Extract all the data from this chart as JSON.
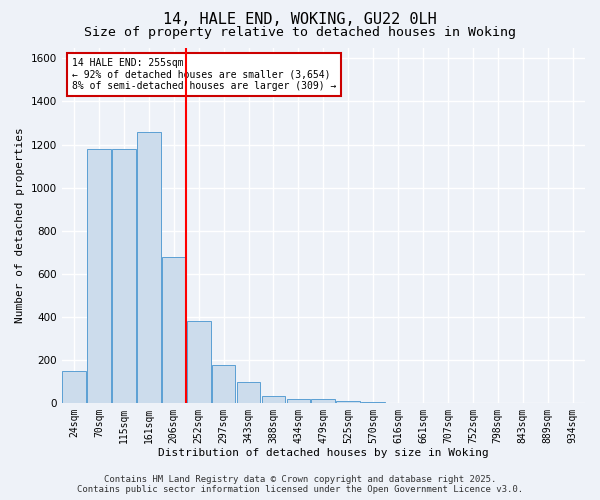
{
  "title_line1": "14, HALE END, WOKING, GU22 0LH",
  "title_line2": "Size of property relative to detached houses in Woking",
  "xlabel": "Distribution of detached houses by size in Woking",
  "ylabel": "Number of detached properties",
  "categories": [
    "24sqm",
    "70sqm",
    "115sqm",
    "161sqm",
    "206sqm",
    "252sqm",
    "297sqm",
    "343sqm",
    "388sqm",
    "434sqm",
    "479sqm",
    "525sqm",
    "570sqm",
    "616sqm",
    "661sqm",
    "707sqm",
    "752sqm",
    "798sqm",
    "843sqm",
    "889sqm",
    "934sqm"
  ],
  "values": [
    150,
    1180,
    1180,
    1260,
    680,
    380,
    175,
    100,
    35,
    20,
    20,
    8,
    5,
    3,
    2,
    2,
    1,
    1,
    0,
    0,
    0
  ],
  "bar_color": "#ccdcec",
  "bar_edge_color": "#5a9fd4",
  "red_line_index": 5,
  "annotation_title": "14 HALE END: 255sqm",
  "annotation_line2": "← 92% of detached houses are smaller (3,654)",
  "annotation_line3": "8% of semi-detached houses are larger (309) →",
  "annotation_box_color": "#ffffff",
  "annotation_edge_color": "#cc0000",
  "footer_line1": "Contains HM Land Registry data © Crown copyright and database right 2025.",
  "footer_line2": "Contains public sector information licensed under the Open Government Licence v3.0.",
  "ylim": [
    0,
    1650
  ],
  "background_color": "#eef2f8",
  "grid_color": "#ffffff",
  "title_fontsize": 11,
  "subtitle_fontsize": 9.5,
  "ylabel_fontsize": 8,
  "xlabel_fontsize": 8,
  "tick_fontsize": 7,
  "footer_fontsize": 6.5,
  "ann_fontsize": 7
}
